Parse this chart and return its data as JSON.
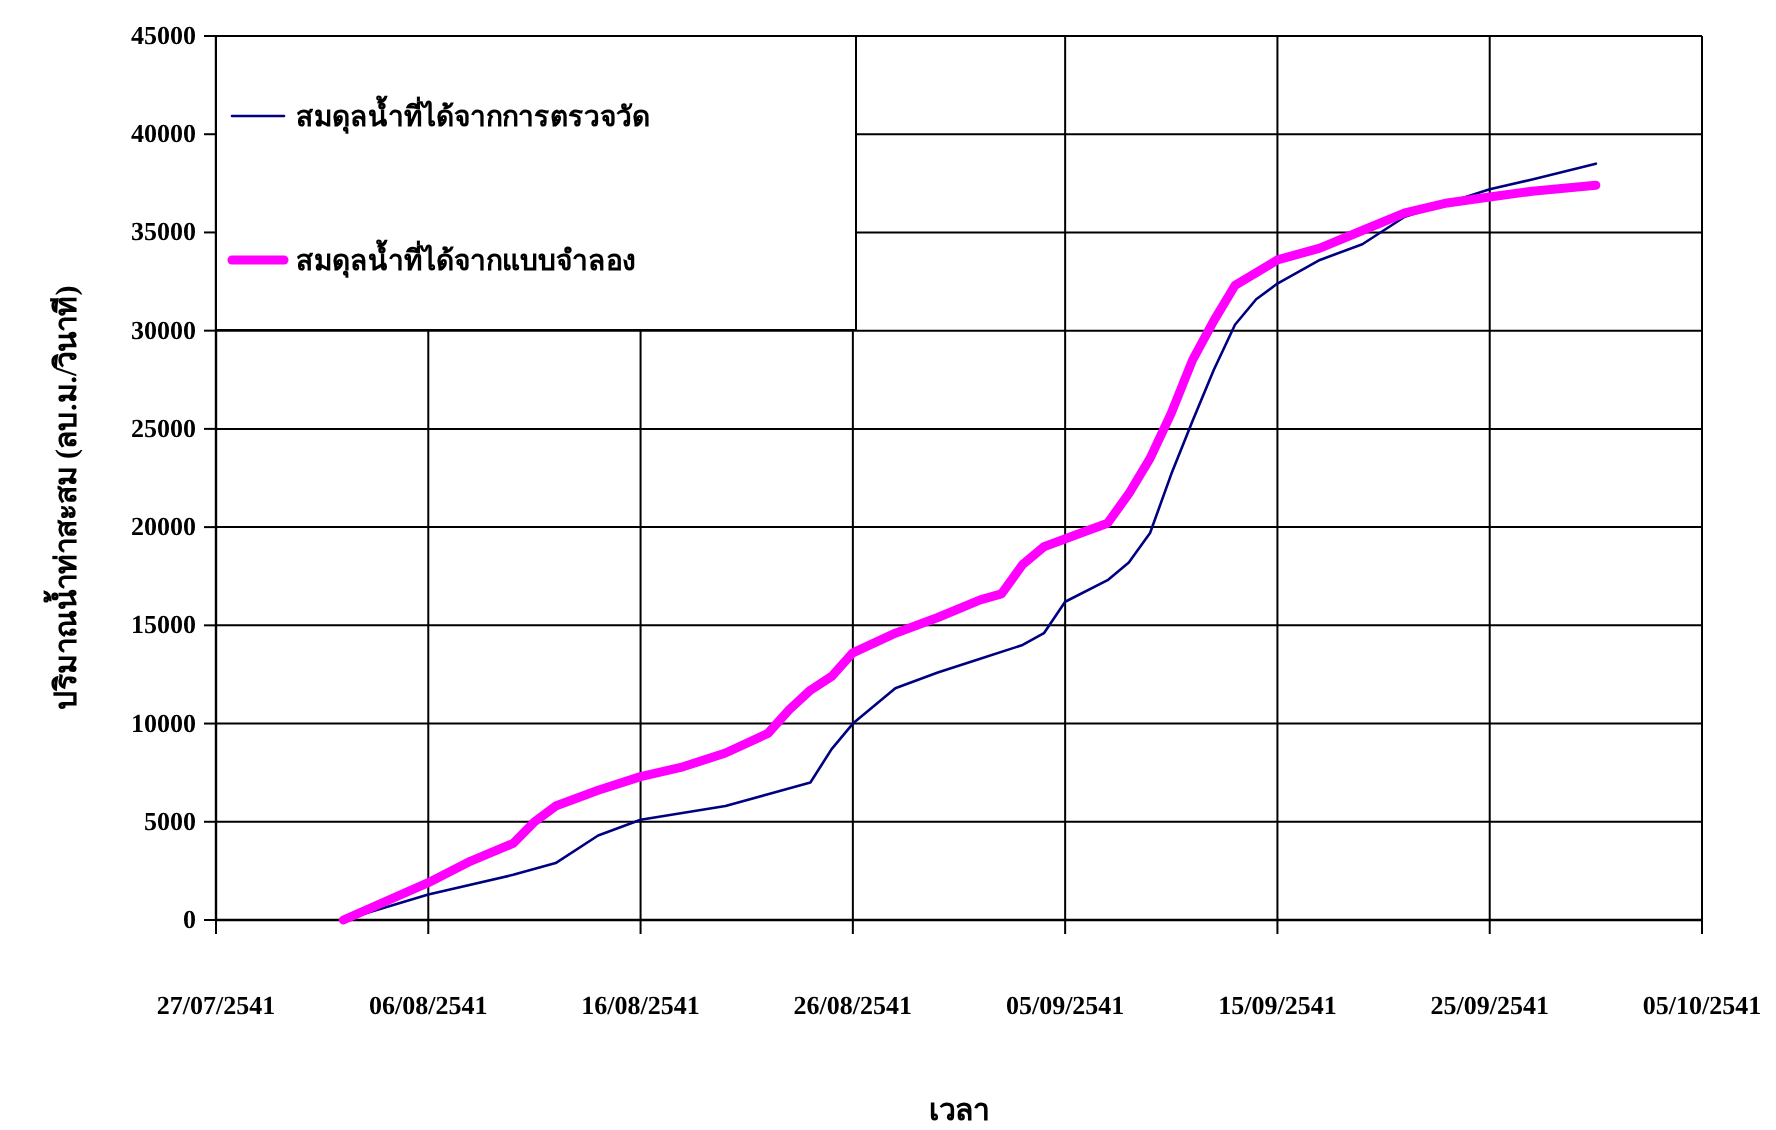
{
  "chart_data": {
    "type": "line",
    "xlabel": "เวลา",
    "ylabel": "ปริมาณน้ำท่าสะสม (ลบ.ม./วินาที)",
    "xlim": [
      "2541-07-27",
      "2541-10-05"
    ],
    "xticks": [
      {
        "value": "2541-07-27",
        "label": "27/07/2541"
      },
      {
        "value": "2541-08-06",
        "label": "06/08/2541"
      },
      {
        "value": "2541-08-16",
        "label": "16/08/2541"
      },
      {
        "value": "2541-08-26",
        "label": "26/08/2541"
      },
      {
        "value": "2541-09-05",
        "label": "05/09/2541"
      },
      {
        "value": "2541-09-15",
        "label": "15/09/2541"
      },
      {
        "value": "2541-09-25",
        "label": "25/09/2541"
      },
      {
        "value": "2541-10-05",
        "label": "05/10/2541"
      }
    ],
    "ylim": [
      0,
      45000
    ],
    "yticks": [
      0,
      5000,
      10000,
      15000,
      20000,
      25000,
      30000,
      35000,
      40000,
      45000
    ],
    "grid": true,
    "legend": "top left",
    "line_style": "solid",
    "marker": "none",
    "series": [
      {
        "name": "สมดุลน้ำที่ได้จากการตรวจวัด",
        "color": "#000080",
        "x": [
          "2541-08-02",
          "2541-08-06",
          "2541-08-10",
          "2541-08-12",
          "2541-08-14",
          "2541-08-16",
          "2541-08-20",
          "2541-08-22",
          "2541-08-24",
          "2541-08-25",
          "2541-08-26",
          "2541-08-28",
          "2541-08-30",
          "2541-09-01",
          "2541-09-03",
          "2541-09-04",
          "2541-09-05",
          "2541-09-07",
          "2541-09-08",
          "2541-09-09",
          "2541-09-10",
          "2541-09-11",
          "2541-09-12",
          "2541-09-13",
          "2541-09-14",
          "2541-09-15",
          "2541-09-17",
          "2541-09-19",
          "2541-09-21",
          "2541-09-25",
          "2541-09-27",
          "2541-09-30"
        ],
        "values": [
          0,
          1300,
          2300,
          2900,
          4300,
          5100,
          5800,
          6400,
          7000,
          8700,
          10000,
          11800,
          12600,
          13300,
          14000,
          14600,
          16200,
          17300,
          18200,
          19700,
          22700,
          25400,
          28000,
          30300,
          31600,
          32400,
          33600,
          34400,
          35800,
          37200,
          37700,
          38500
        ]
      },
      {
        "name": "สมดุลน้ำที่ได้จากแบบจำลอง",
        "color": "#ff00ff",
        "x": [
          "2541-08-02",
          "2541-08-06",
          "2541-08-08",
          "2541-08-10",
          "2541-08-11",
          "2541-08-12",
          "2541-08-14",
          "2541-08-16",
          "2541-08-18",
          "2541-08-20",
          "2541-08-22",
          "2541-08-23",
          "2541-08-24",
          "2541-08-25",
          "2541-08-26",
          "2541-08-28",
          "2541-08-30",
          "2541-09-01",
          "2541-09-02",
          "2541-09-03",
          "2541-09-04",
          "2541-09-06",
          "2541-09-07",
          "2541-09-08",
          "2541-09-09",
          "2541-09-10",
          "2541-09-11",
          "2541-09-12",
          "2541-09-13",
          "2541-09-15",
          "2541-09-17",
          "2541-09-19",
          "2541-09-21",
          "2541-09-23",
          "2541-09-25",
          "2541-09-27",
          "2541-09-30"
        ],
        "values": [
          0,
          1900,
          3000,
          3900,
          5000,
          5800,
          6600,
          7300,
          7800,
          8500,
          9500,
          10700,
          11700,
          12400,
          13600,
          14600,
          15400,
          16300,
          16600,
          18100,
          19000,
          19800,
          20200,
          21700,
          23500,
          25800,
          28500,
          30500,
          32300,
          33600,
          34200,
          35100,
          36000,
          36500,
          36800,
          37100,
          37400
        ]
      }
    ]
  }
}
